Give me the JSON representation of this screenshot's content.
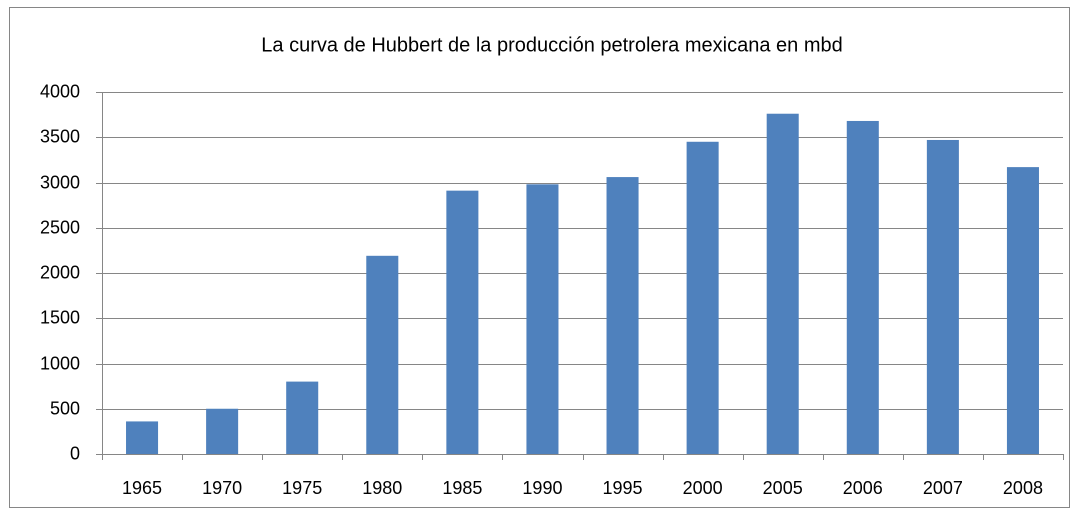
{
  "chart_data": {
    "type": "bar",
    "title": "La curva de Hubbert de la producción petrolera mexicana en mbd",
    "categories": [
      "1965",
      "1970",
      "1975",
      "1980",
      "1985",
      "1990",
      "1995",
      "2000",
      "2005",
      "2006",
      "2007",
      "2008"
    ],
    "values": [
      360,
      500,
      800,
      2190,
      2910,
      2980,
      3060,
      3450,
      3760,
      3680,
      3470,
      3170
    ],
    "color": "#4f81bd",
    "ylim": [
      0,
      4000
    ],
    "yticks": [
      0,
      500,
      1000,
      1500,
      2000,
      2500,
      3000,
      3500,
      4000
    ],
    "grid": true
  }
}
